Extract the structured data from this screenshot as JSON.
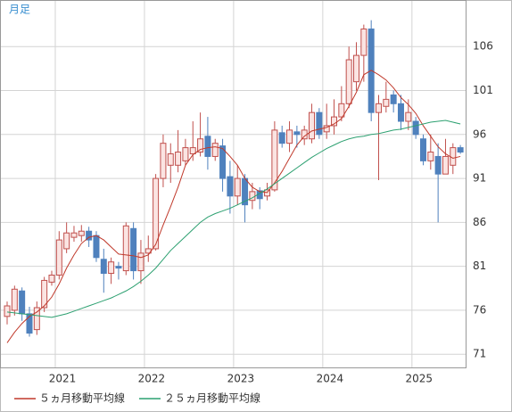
{
  "chart_data": {
    "type": "candlestick",
    "title": "月足",
    "categories": [
      null,
      null,
      null,
      null,
      null,
      null,
      "2021",
      null,
      null,
      null,
      null,
      null,
      null,
      null,
      null,
      null,
      null,
      null,
      "2022",
      null,
      null,
      null,
      null,
      null,
      null,
      null,
      null,
      null,
      null,
      null,
      "2023",
      null,
      null,
      null,
      null,
      null,
      null,
      null,
      null,
      null,
      null,
      null,
      "2024",
      null,
      null,
      null,
      null,
      null,
      null,
      null,
      null,
      null,
      null,
      null,
      "2025",
      null,
      null,
      null,
      null,
      null,
      null,
      null
    ],
    "open": [
      75.3,
      76,
      78.2,
      75.6,
      73.8,
      76.3,
      79.2,
      80,
      83,
      84.3,
      84.5,
      85,
      84.5,
      81.8,
      80.2,
      81,
      80.5,
      85.3,
      80.5,
      82.5,
      83,
      91,
      92.5,
      92.5,
      93,
      93.8,
      94,
      95.8,
      93.5,
      94.7,
      91.2,
      89,
      91,
      88.5,
      89.6,
      89,
      89.7,
      96.2,
      95,
      96.3,
      95.5,
      95.5,
      98.5,
      96.3,
      97,
      98,
      99.5,
      102,
      105,
      108,
      98.5,
      99.2,
      100.5,
      99.5,
      97.5,
      97.5,
      95.5,
      93,
      93.5,
      91.5,
      92.5,
      94.5
    ],
    "high": [
      77,
      78.8,
      78.6,
      76.4,
      77,
      79.8,
      80.5,
      85,
      86,
      85.6,
      85.7,
      85.5,
      85,
      83,
      82,
      81.5,
      86,
      86,
      84,
      84.5,
      91.5,
      96,
      95,
      96.5,
      95.5,
      97.5,
      98.5,
      98,
      95.5,
      95.5,
      93,
      92.5,
      91.5,
      90.5,
      90,
      90.5,
      97.5,
      97,
      97.5,
      97,
      97,
      99.5,
      99,
      99.5,
      100,
      101.5,
      106,
      106.5,
      108.5,
      109,
      100.5,
      102,
      101,
      100.5,
      100,
      98,
      96,
      96,
      95,
      95.5,
      95,
      94.8
    ],
    "low": [
      74.4,
      75.4,
      74.8,
      73,
      73.2,
      75.8,
      78.8,
      79.5,
      82.5,
      83.8,
      83.8,
      83.2,
      81.5,
      78,
      79,
      79.5,
      80,
      79.5,
      79,
      81.5,
      82.8,
      90,
      90.5,
      91.7,
      92.5,
      93,
      93.5,
      92,
      93,
      89.5,
      87,
      88,
      86,
      87.5,
      87.5,
      88.5,
      89.5,
      94.5,
      94,
      94.5,
      94.8,
      95,
      95.5,
      95.5,
      96,
      97.5,
      99,
      101,
      102,
      97.5,
      90.8,
      98.5,
      98.5,
      96.5,
      96.5,
      95.5,
      92.5,
      92,
      86,
      91.5,
      91.5,
      93.8
    ],
    "close": [
      76.5,
      78.4,
      75.6,
      73.4,
      76.3,
      79.4,
      80,
      84,
      84.8,
      84.8,
      85,
      84,
      82,
      80.2,
      81.5,
      80.8,
      85.6,
      80.5,
      82.5,
      83,
      91,
      95,
      93.8,
      94,
      94.5,
      94.5,
      95.5,
      93.5,
      95,
      91,
      89,
      91,
      88,
      89.5,
      88.7,
      89.7,
      96.5,
      95,
      96.5,
      96,
      96.5,
      98.5,
      96,
      97,
      98,
      99.5,
      104.5,
      105,
      108,
      98.5,
      99.5,
      100,
      99.5,
      97.5,
      98.5,
      96,
      93,
      94,
      91.5,
      93.5,
      94.5,
      94
    ],
    "up_color": "#c0504d",
    "up_fill": "#fbe4e2",
    "down_color": "#4f81bd",
    "series": [
      {
        "name": "５ヵ月移動平均線",
        "color": "#c0392b",
        "values": [
          72.3,
          73.5,
          74.5,
          75.3,
          75.8,
          76.5,
          77.5,
          79,
          80.8,
          82.3,
          83.6,
          84.3,
          84.5,
          84,
          83.2,
          82.4,
          82.3,
          82.2,
          82,
          82.3,
          83.5,
          85.7,
          87.8,
          90,
          92.5,
          93.7,
          94.3,
          94.5,
          94.6,
          94.4,
          93.5,
          92.5,
          91,
          90,
          89.5,
          89.4,
          90.5,
          91.8,
          93.3,
          94.8,
          95.8,
          96.4,
          96.6,
          96.8,
          97.2,
          97.8,
          99.2,
          100.8,
          102.8,
          103.3,
          102.8,
          102.2,
          101.3,
          100.2,
          99.4,
          98.4,
          97,
          95.8,
          94.6,
          93.8,
          93.3,
          93.5
        ]
      },
      {
        "name": "２５ヵ月移動平均線",
        "color": "#2ca070",
        "values": [
          75.8,
          75.7,
          75.6,
          75.5,
          75.4,
          75.3,
          75.2,
          75.4,
          75.6,
          75.9,
          76.2,
          76.5,
          76.8,
          77.1,
          77.4,
          77.8,
          78.2,
          78.7,
          79.3,
          80,
          80.8,
          81.8,
          82.8,
          83.6,
          84.4,
          85.2,
          86,
          86.6,
          87,
          87.3,
          87.6,
          88,
          88.4,
          88.8,
          89.3,
          89.8,
          90.4,
          91,
          91.6,
          92.2,
          92.8,
          93.4,
          93.9,
          94.4,
          94.8,
          95.2,
          95.5,
          95.7,
          95.8,
          96,
          96.1,
          96.3,
          96.5,
          96.6,
          96.8,
          97,
          97.2,
          97.4,
          97.5,
          97.6,
          97.4,
          97.2
        ]
      }
    ],
    "ylim": [
      69.5,
      111.3
    ],
    "yticks": [
      71,
      76,
      81,
      86,
      91,
      96,
      101,
      106
    ],
    "grid": true
  }
}
